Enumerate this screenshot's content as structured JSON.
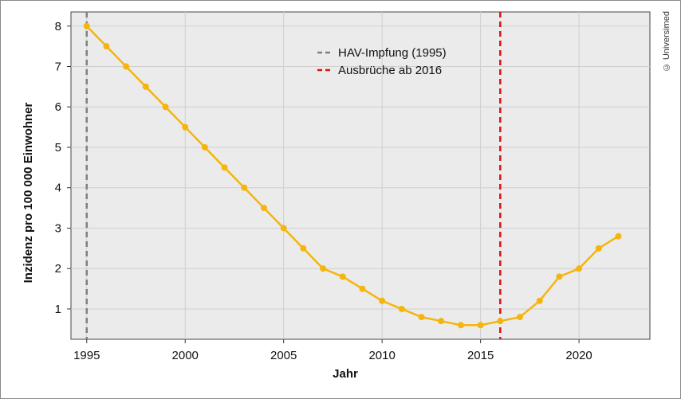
{
  "chart_data": {
    "type": "line",
    "title": "",
    "xlabel": "Jahr",
    "ylabel": "Inzidenz pro 100 000 Einwohner",
    "xlim": [
      1994.2,
      2023.6
    ],
    "ylim": [
      0.25,
      8.35
    ],
    "x_ticks": [
      1995,
      2000,
      2005,
      2010,
      2015,
      2020
    ],
    "y_ticks": [
      1,
      2,
      3,
      4,
      5,
      6,
      7,
      8
    ],
    "grid": true,
    "series": [
      {
        "color": "#f5b50c",
        "x": [
          1995,
          1996,
          1997,
          1998,
          1999,
          2000,
          2001,
          2002,
          2003,
          2004,
          2005,
          2006,
          2007,
          2008,
          2009,
          2010,
          2011,
          2012,
          2013,
          2014,
          2015,
          2016,
          2017,
          2018,
          2019,
          2020,
          2021,
          2022
        ],
        "y": [
          8.0,
          7.5,
          7.0,
          6.5,
          6.0,
          5.5,
          5.0,
          4.5,
          4.0,
          3.5,
          3.0,
          2.5,
          2.0,
          1.8,
          1.5,
          1.2,
          1.0,
          0.8,
          0.7,
          0.6,
          0.6,
          0.7,
          0.8,
          1.2,
          1.8,
          2.0,
          2.5,
          2.8
        ]
      }
    ],
    "vlines": [
      {
        "x": 1995,
        "color": "#808080",
        "label": "HAV-Impfung (1995)"
      },
      {
        "x": 2016,
        "color": "#dd1111",
        "label": "Ausbrüche ab 2016"
      }
    ],
    "legend_position": "top-center"
  },
  "copyright": "© Universimed"
}
